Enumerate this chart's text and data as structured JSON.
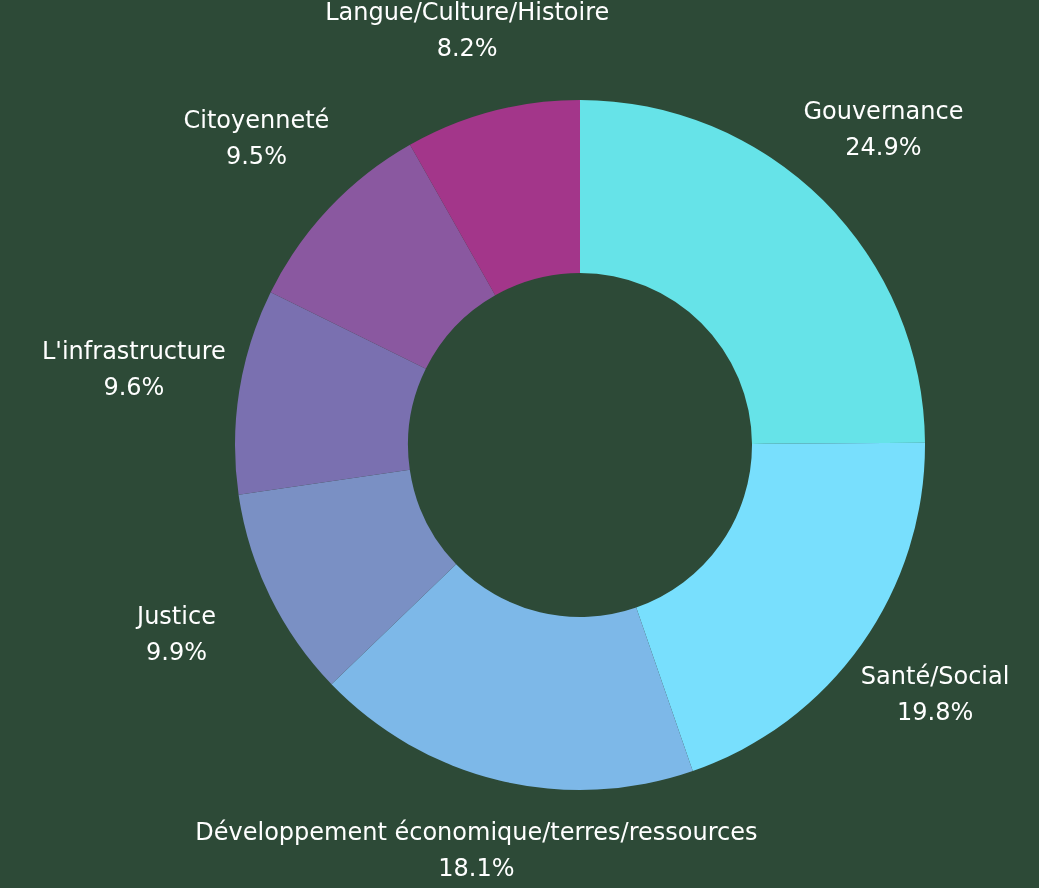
{
  "chart_data": {
    "type": "donut",
    "categories": [
      "Gouvernance",
      "Santé/Social",
      "Développement économique/terres/ressources",
      "Justice",
      "L'infrastructure",
      "Citoyenneté",
      "Langue/Culture/Histoire"
    ],
    "values": [
      24.9,
      19.8,
      18.1,
      9.9,
      9.6,
      9.5,
      8.2
    ],
    "value_labels": [
      "24.9%",
      "19.8%",
      "18.1%",
      "9.9%",
      "9.6%",
      "9.5%",
      "8.2%"
    ],
    "colors": [
      "#66e3e8",
      "#78dffd",
      "#7db8e8",
      "#7a90c4",
      "#7a70b0",
      "#8a58a0",
      "#a3368a"
    ],
    "legend": false
  }
}
